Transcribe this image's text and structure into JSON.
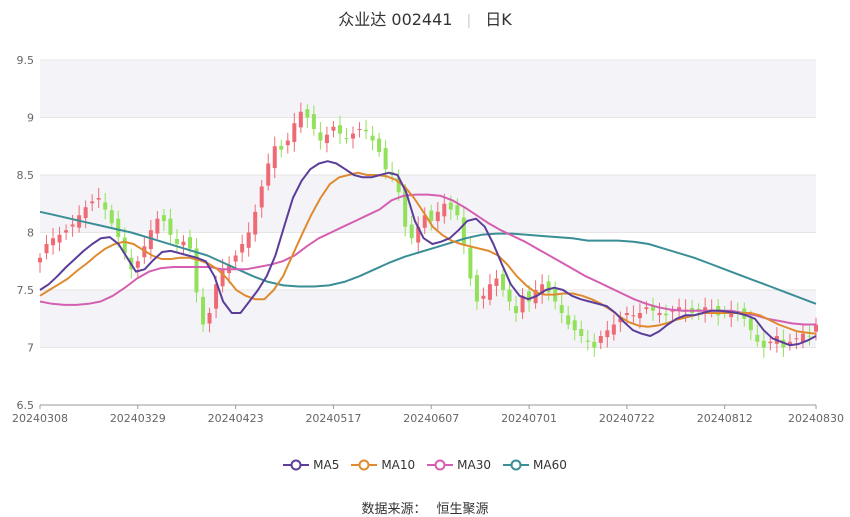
{
  "title": {
    "name": "众业达 002441",
    "period": "日K"
  },
  "source": {
    "label": "数据来源：",
    "value": "恒生聚源"
  },
  "colors": {
    "up": "#ee6b75",
    "down": "#91e15a",
    "grid": "#e6e6e6",
    "band": "#f4f4f8"
  },
  "chart_data": {
    "type": "candlestick",
    "ylim": [
      6.5,
      9.5
    ],
    "y_ticks": [
      "6.5",
      "7",
      "7.5",
      "8",
      "8.5",
      "9",
      "9.5"
    ],
    "x_tick_labels": [
      "20240308",
      "20240329",
      "20240423",
      "20240517",
      "20240607",
      "20240701",
      "20240722",
      "20240812",
      "20240830"
    ],
    "x_tick_positions": [
      0,
      15,
      30,
      45,
      60,
      75,
      90,
      105,
      119
    ],
    "n_days": 120,
    "legend": [
      {
        "name": "MA5",
        "color": "#5b3d9a"
      },
      {
        "name": "MA10",
        "color": "#e08a30"
      },
      {
        "name": "MA30",
        "color": "#d45fb0"
      },
      {
        "name": "MA60",
        "color": "#3a8e96"
      }
    ],
    "closes": [
      7.78,
      7.9,
      7.95,
      7.98,
      8.02,
      8.07,
      8.15,
      8.22,
      8.27,
      8.3,
      8.2,
      8.08,
      7.96,
      7.82,
      7.68,
      7.75,
      7.88,
      8.02,
      8.12,
      8.1,
      7.98,
      7.9,
      7.92,
      7.86,
      7.48,
      7.2,
      7.3,
      7.55,
      7.68,
      7.72,
      7.8,
      7.9,
      8.0,
      8.18,
      8.4,
      8.6,
      8.75,
      8.72,
      8.8,
      8.95,
      9.05,
      9.0,
      8.9,
      8.8,
      8.85,
      8.92,
      8.86,
      8.82,
      8.86,
      8.9,
      8.88,
      8.8,
      8.7,
      8.55,
      8.5,
      8.35,
      8.05,
      7.95,
      8.05,
      8.15,
      8.1,
      8.18,
      8.25,
      8.2,
      8.15,
      7.9,
      7.6,
      7.4,
      7.45,
      7.55,
      7.6,
      7.5,
      7.4,
      7.3,
      7.45,
      7.4,
      7.5,
      7.55,
      7.48,
      7.4,
      7.3,
      7.2,
      7.15,
      7.1,
      7.05,
      7.0,
      7.1,
      7.15,
      7.2,
      7.25,
      7.3,
      7.28,
      7.3,
      7.35,
      7.32,
      7.3,
      7.28,
      7.32,
      7.35,
      7.33,
      7.3,
      7.32,
      7.35,
      7.33,
      7.28,
      7.3,
      7.32,
      7.3,
      7.25,
      7.15,
      7.05,
      7.0,
      7.05,
      7.1,
      7.0,
      7.05,
      7.08,
      7.12,
      7.1,
      7.2
    ],
    "ma5": [
      7.5,
      7.55,
      7.62,
      7.7,
      7.77,
      7.84,
      7.9,
      7.95,
      7.96,
      7.9,
      7.78,
      7.66,
      7.68,
      7.76,
      7.83,
      7.84,
      7.82,
      7.8,
      7.78,
      7.75,
      7.62,
      7.4,
      7.3,
      7.3,
      7.4,
      7.5,
      7.62,
      7.8,
      8.05,
      8.3,
      8.45,
      8.55,
      8.6,
      8.62,
      8.6,
      8.55,
      8.5,
      8.48,
      8.48,
      8.5,
      8.52,
      8.5,
      8.35,
      8.1,
      7.95,
      7.9,
      7.92,
      7.95,
      8.02,
      8.1,
      8.12,
      8.05,
      7.9,
      7.72,
      7.55,
      7.45,
      7.42,
      7.45,
      7.5,
      7.52,
      7.5,
      7.45,
      7.42,
      7.4,
      7.38,
      7.36,
      7.3,
      7.22,
      7.15,
      7.12,
      7.1,
      7.14,
      7.2,
      7.25,
      7.28,
      7.28,
      7.3,
      7.32,
      7.32,
      7.31,
      7.3,
      7.28,
      7.25,
      7.15,
      7.08,
      7.05,
      7.02,
      7.03,
      7.06,
      7.1
    ],
    "ma10": [
      7.45,
      7.5,
      7.55,
      7.6,
      7.67,
      7.73,
      7.8,
      7.86,
      7.9,
      7.92,
      7.9,
      7.85,
      7.8,
      7.77,
      7.77,
      7.78,
      7.78,
      7.76,
      7.73,
      7.68,
      7.6,
      7.5,
      7.45,
      7.42,
      7.42,
      7.5,
      7.62,
      7.8,
      7.98,
      8.15,
      8.3,
      8.42,
      8.48,
      8.5,
      8.52,
      8.5,
      8.5,
      8.49,
      8.46,
      8.4,
      8.3,
      8.18,
      8.05,
      7.98,
      7.93,
      7.9,
      7.88,
      7.86,
      7.84,
      7.8,
      7.72,
      7.62,
      7.54,
      7.48,
      7.46,
      7.46,
      7.47,
      7.47,
      7.45,
      7.42,
      7.38,
      7.33,
      7.27,
      7.22,
      7.19,
      7.18,
      7.19,
      7.21,
      7.24,
      7.26,
      7.28,
      7.3,
      7.3,
      7.3,
      7.3,
      7.3,
      7.3,
      7.28,
      7.24,
      7.2,
      7.17,
      7.14,
      7.13,
      7.12
    ],
    "ma30": [
      7.4,
      7.38,
      7.37,
      7.37,
      7.38,
      7.4,
      7.45,
      7.52,
      7.6,
      7.66,
      7.69,
      7.7,
      7.7,
      7.7,
      7.7,
      7.68,
      7.68,
      7.68,
      7.7,
      7.72,
      7.75,
      7.8,
      7.88,
      7.95,
      8.0,
      8.05,
      8.1,
      8.15,
      8.2,
      8.28,
      8.32,
      8.33,
      8.33,
      8.32,
      8.28,
      8.22,
      8.15,
      8.08,
      8.02,
      7.97,
      7.92,
      7.86,
      7.8,
      7.74,
      7.68,
      7.62,
      7.57,
      7.52,
      7.47,
      7.42,
      7.38,
      7.35,
      7.33,
      7.32,
      7.32,
      7.32,
      7.32,
      7.32,
      7.3,
      7.28,
      7.25,
      7.23,
      7.21,
      7.2,
      7.2
    ],
    "ma60": [
      8.18,
      8.15,
      8.12,
      8.09,
      8.06,
      8.03,
      8.0,
      7.96,
      7.92,
      7.88,
      7.84,
      7.8,
      7.74,
      7.68,
      7.62,
      7.57,
      7.54,
      7.53,
      7.53,
      7.54,
      7.57,
      7.62,
      7.68,
      7.74,
      7.79,
      7.83,
      7.87,
      7.91,
      7.95,
      7.98,
      7.99,
      7.99,
      7.98,
      7.97,
      7.96,
      7.95,
      7.93,
      7.93,
      7.93,
      7.92,
      7.9,
      7.86,
      7.82,
      7.78,
      7.73,
      7.68,
      7.63,
      7.58,
      7.53,
      7.48,
      7.43,
      7.38
    ]
  }
}
